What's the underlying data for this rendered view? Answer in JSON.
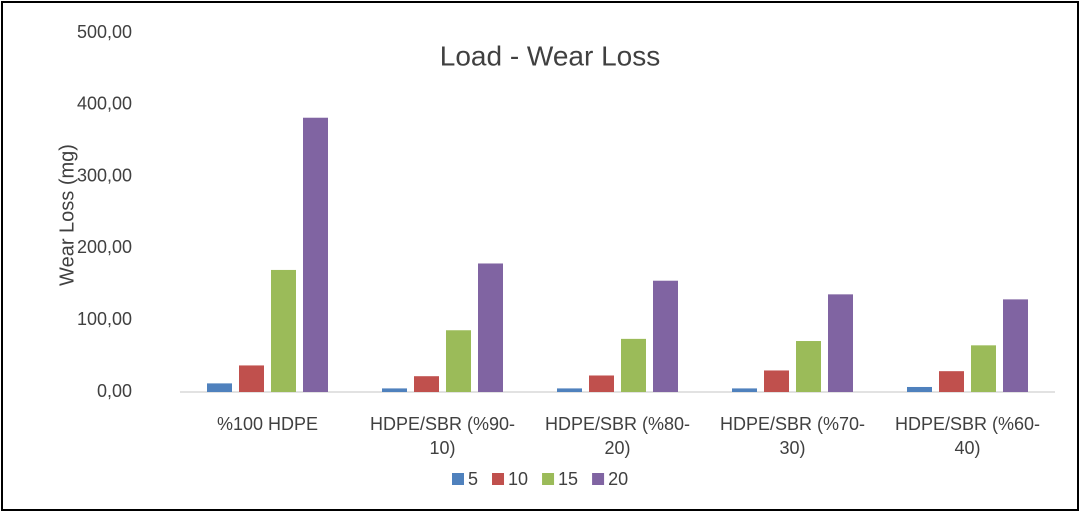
{
  "chart_data": {
    "type": "bar",
    "title": "Load - Wear Loss",
    "y_label": "Wear Loss (mg)",
    "categories": [
      "%100 HDPE",
      "HDPE/SBR (%90-10)",
      "HDPE/SBR (%80-20)",
      "HDPE/SBR (%70-30)",
      "HDPE/SBR (%60-40)"
    ],
    "series": [
      {
        "name": "5",
        "color": "#4f81bd",
        "values": [
          12,
          5,
          5,
          5,
          7
        ]
      },
      {
        "name": "10",
        "color": "#c0504d",
        "values": [
          37,
          22,
          23,
          30,
          29
        ]
      },
      {
        "name": "15",
        "color": "#9bbb59",
        "values": [
          170,
          86,
          74,
          71,
          65
        ]
      },
      {
        "name": "20",
        "color": "#8064a2",
        "values": [
          382,
          179,
          155,
          136,
          129
        ]
      }
    ],
    "ylim": [
      0,
      500
    ],
    "yticks": [
      {
        "value": 0,
        "label": "0,00"
      },
      {
        "value": 100,
        "label": "100,00"
      },
      {
        "value": 200,
        "label": "200,00"
      },
      {
        "value": 300,
        "label": "300,00"
      },
      {
        "value": 400,
        "label": "400,00"
      },
      {
        "value": 500,
        "label": "500,00"
      }
    ],
    "grid": false,
    "legend": "bottom"
  }
}
